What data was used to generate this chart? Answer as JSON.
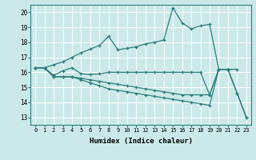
{
  "background_color": "#cce9e9",
  "grid_color": "#ffffff",
  "line_color": "#2e7d7d",
  "xlabel": "Humidex (Indice chaleur)",
  "xlim": [
    -0.5,
    23.5
  ],
  "ylim": [
    12.5,
    20.5
  ],
  "yticks": [
    13,
    14,
    15,
    16,
    17,
    18,
    19,
    20
  ],
  "xticks": [
    0,
    1,
    2,
    3,
    4,
    5,
    6,
    7,
    8,
    9,
    10,
    11,
    12,
    13,
    14,
    15,
    16,
    17,
    18,
    19,
    20,
    21,
    22,
    23
  ],
  "series": [
    {
      "x": [
        0,
        1,
        2,
        3,
        4,
        5,
        6,
        7,
        8,
        9,
        10,
        11,
        12,
        13,
        14,
        15,
        16,
        17,
        18,
        19,
        20,
        21
      ],
      "y": [
        16.3,
        16.3,
        16.5,
        16.7,
        17.0,
        17.3,
        17.55,
        17.8,
        18.4,
        17.5,
        17.6,
        17.7,
        17.9,
        18.0,
        18.15,
        20.3,
        19.3,
        18.9,
        19.1,
        19.2,
        16.2,
        16.2
      ]
    },
    {
      "x": [
        0,
        1,
        2,
        3,
        4,
        5,
        6,
        7,
        8,
        9,
        10,
        11,
        12,
        13,
        14,
        15,
        16,
        17,
        18,
        19,
        20,
        21,
        22
      ],
      "y": [
        16.3,
        16.3,
        15.8,
        16.1,
        16.3,
        15.9,
        15.85,
        15.9,
        16.0,
        16.0,
        16.0,
        16.0,
        16.0,
        16.0,
        16.0,
        16.0,
        16.0,
        16.0,
        16.0,
        14.5,
        16.2,
        16.2,
        16.2
      ]
    },
    {
      "x": [
        0,
        1,
        2,
        3,
        4,
        5,
        6,
        7,
        8,
        9,
        10,
        11,
        12,
        13,
        14,
        15,
        16,
        17,
        18,
        19,
        20,
        21,
        22,
        23
      ],
      "y": [
        16.3,
        16.3,
        15.7,
        15.7,
        15.7,
        15.6,
        15.5,
        15.4,
        15.3,
        15.2,
        15.1,
        15.0,
        14.9,
        14.8,
        14.7,
        14.6,
        14.5,
        14.5,
        14.5,
        14.5,
        16.2,
        16.2,
        14.6,
        13.0
      ]
    },
    {
      "x": [
        0,
        1,
        2,
        3,
        4,
        5,
        6,
        7,
        8,
        9,
        10,
        11,
        12,
        13,
        14,
        15,
        16,
        17,
        18,
        19,
        20,
        21,
        22,
        23
      ],
      "y": [
        16.3,
        16.3,
        15.7,
        15.7,
        15.7,
        15.5,
        15.3,
        15.1,
        14.9,
        14.8,
        14.7,
        14.6,
        14.5,
        14.4,
        14.3,
        14.2,
        14.1,
        14.0,
        13.9,
        13.8,
        16.2,
        16.2,
        14.6,
        13.0
      ]
    }
  ],
  "marker": "+",
  "markersize": 3.5,
  "linewidth": 0.9,
  "markeredgewidth": 0.9
}
